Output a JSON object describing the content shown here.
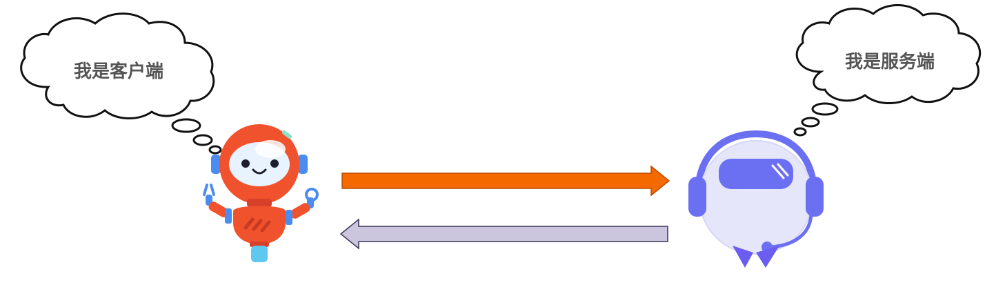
{
  "client": {
    "bubble_text": "我是客户端"
  },
  "server": {
    "bubble_text": "我是服务端"
  },
  "arrows": {
    "request_color": "#f56a00",
    "response_color": "#cbc6dd"
  },
  "colors": {
    "client_robot": "#f0522d",
    "server_robot": "#6b6ff2",
    "server_face": "#e6e6fb"
  }
}
